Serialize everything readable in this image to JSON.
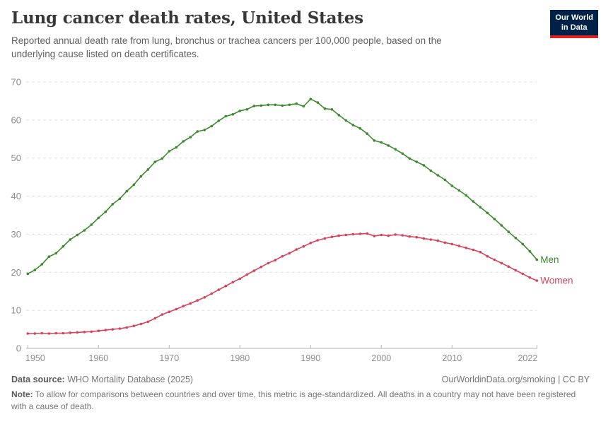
{
  "header": {
    "title": "Lung cancer death rates, United States",
    "subtitle": "Reported annual death rate from lung, bronchus or trachea cancers per 100,000 people, based on the underlying cause listed on death certificates."
  },
  "logo": {
    "line1": "Our World",
    "line2": "in Data",
    "bg_color": "#002147",
    "accent_color": "#D8241F"
  },
  "chart_data": {
    "type": "line",
    "title": "Lung cancer death rates, United States",
    "xlabel": "",
    "ylabel": "",
    "xlim": [
      1950,
      2022
    ],
    "ylim": [
      0,
      70
    ],
    "grid": "horizontal-dashed",
    "legend_position": "right-end-labels",
    "xticks": [
      1950,
      1960,
      1970,
      1980,
      1990,
      2000,
      2010,
      2022
    ],
    "yticks": [
      0,
      10,
      20,
      30,
      40,
      50,
      60,
      70
    ],
    "x": [
      1950,
      1951,
      1952,
      1953,
      1954,
      1955,
      1956,
      1957,
      1958,
      1959,
      1960,
      1961,
      1962,
      1963,
      1964,
      1965,
      1966,
      1967,
      1968,
      1969,
      1970,
      1971,
      1972,
      1973,
      1974,
      1975,
      1976,
      1977,
      1978,
      1979,
      1980,
      1981,
      1982,
      1983,
      1984,
      1985,
      1986,
      1987,
      1988,
      1989,
      1990,
      1991,
      1992,
      1993,
      1994,
      1995,
      1996,
      1997,
      1998,
      1999,
      2000,
      2001,
      2002,
      2003,
      2004,
      2005,
      2006,
      2007,
      2008,
      2009,
      2010,
      2011,
      2012,
      2013,
      2014,
      2015,
      2016,
      2017,
      2018,
      2019,
      2020,
      2021,
      2022
    ],
    "series": [
      {
        "name": "Men",
        "color": "#3C8A2E",
        "values": [
          19.6,
          20.6,
          22.1,
          24.1,
          25.0,
          26.8,
          28.6,
          29.8,
          31.0,
          32.5,
          34.3,
          35.9,
          37.9,
          39.3,
          41.3,
          43.0,
          45.2,
          47.0,
          49.0,
          49.9,
          51.8,
          52.8,
          54.4,
          55.5,
          57.0,
          57.4,
          58.4,
          59.8,
          61.0,
          61.5,
          62.4,
          62.8,
          63.7,
          63.8,
          64.0,
          64.0,
          63.8,
          64.0,
          64.3,
          63.6,
          65.5,
          64.6,
          63.0,
          62.8,
          61.3,
          59.9,
          58.7,
          57.8,
          56.4,
          54.6,
          54.1,
          53.3,
          52.3,
          51.2,
          49.9,
          49.0,
          48.1,
          46.7,
          45.5,
          44.3,
          42.7,
          41.5,
          40.2,
          38.6,
          37.1,
          35.6,
          34.0,
          32.3,
          30.6,
          29.0,
          27.4,
          25.5,
          23.3
        ]
      },
      {
        "name": "Women",
        "color": "#D8435C",
        "values": [
          3.9,
          3.9,
          4.0,
          3.9,
          4.0,
          4.0,
          4.1,
          4.2,
          4.3,
          4.4,
          4.6,
          4.8,
          5.0,
          5.2,
          5.5,
          5.9,
          6.4,
          7.0,
          7.9,
          8.9,
          9.6,
          10.3,
          11.1,
          11.8,
          12.6,
          13.4,
          14.4,
          15.4,
          16.4,
          17.4,
          18.3,
          19.4,
          20.4,
          21.4,
          22.4,
          23.2,
          24.2,
          25.0,
          26.0,
          26.8,
          27.7,
          28.4,
          28.9,
          29.3,
          29.6,
          29.8,
          30.0,
          30.1,
          30.2,
          29.5,
          29.8,
          29.6,
          29.9,
          29.7,
          29.4,
          29.2,
          28.9,
          28.6,
          28.3,
          27.8,
          27.4,
          26.9,
          26.4,
          25.9,
          25.3,
          24.2,
          23.3,
          22.4,
          21.5,
          20.5,
          19.6,
          18.6,
          17.8
        ]
      }
    ]
  },
  "footer": {
    "data_source_label": "Data source:",
    "data_source": "WHO Mortality Database (2025)",
    "rights": "OurWorldinData.org/smoking | CC BY",
    "note_label": "Note:",
    "note": "To allow for comparisons between countries and over time, this metric is age-standardized. All deaths in a country may not have been registered with a cause of death."
  }
}
